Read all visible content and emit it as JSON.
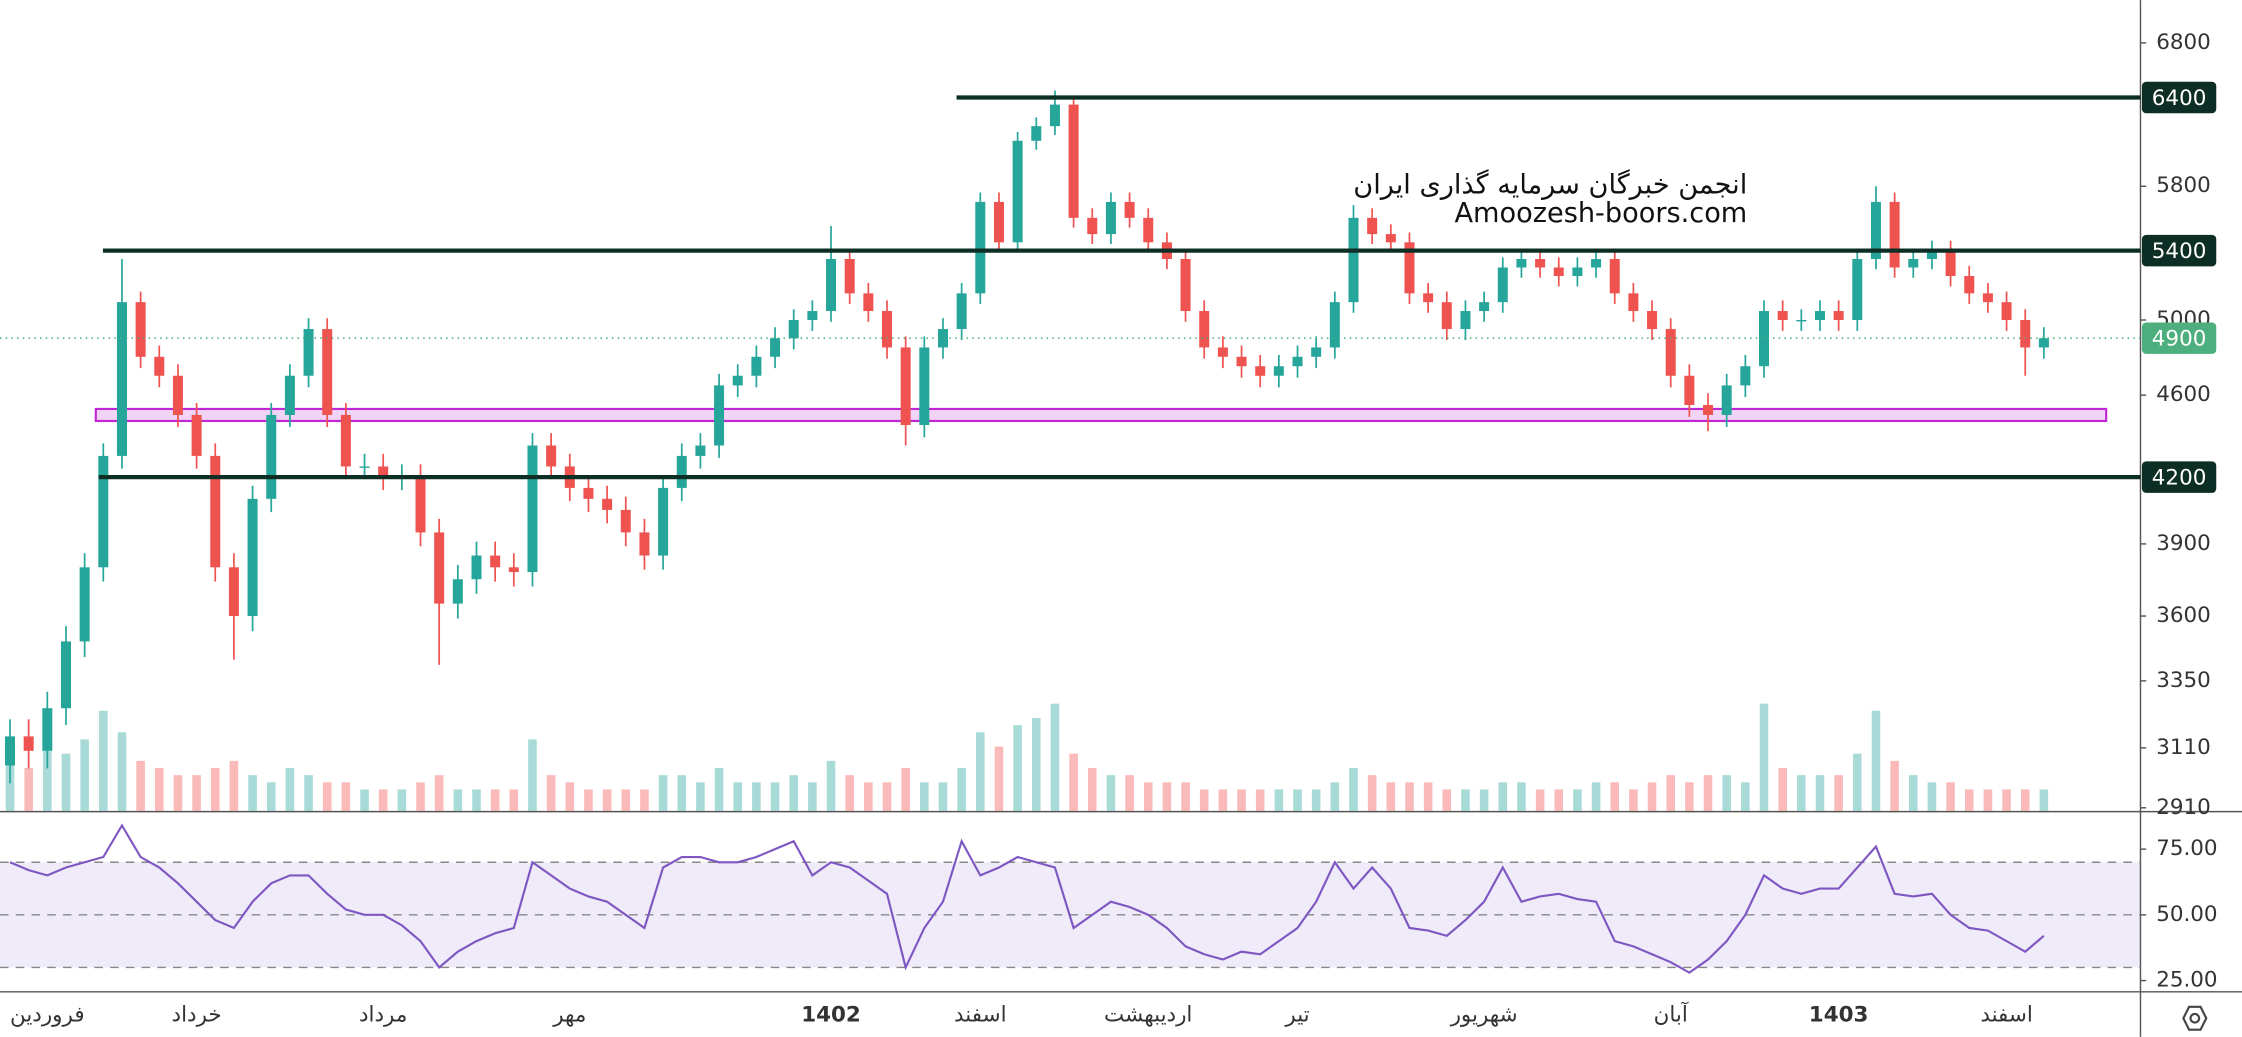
{
  "chart_data": [
    {
      "type": "candlestick",
      "watermark": [
        "انجمن خبرگان سرمایه گذاری ایران",
        "Amoozesh-boors.com"
      ],
      "categories": [
        null,
        null,
        "فروردین",
        null,
        null,
        null,
        null,
        null,
        null,
        null,
        "خرداد",
        null,
        null,
        null,
        null,
        null,
        null,
        null,
        null,
        null,
        "مرداد",
        null,
        null,
        null,
        null,
        null,
        null,
        null,
        null,
        null,
        "مهر",
        null,
        null,
        null,
        null,
        null,
        null,
        null,
        null,
        null,
        null,
        null,
        null,
        null,
        "1402",
        null,
        null,
        null,
        null,
        null,
        null,
        null,
        "اسفند",
        null,
        null,
        null,
        null,
        null,
        null,
        null,
        null,
        "اردیبهشت",
        null,
        null,
        null,
        null,
        null,
        null,
        null,
        "تیر",
        null,
        null,
        null,
        null,
        null,
        null,
        null,
        null,
        null,
        "شهریور",
        null,
        null,
        null,
        null,
        null,
        null,
        null,
        null,
        null,
        "آبان",
        null,
        null,
        null,
        null,
        null,
        null,
        null,
        null,
        "1403",
        null,
        null,
        null,
        null,
        null,
        null,
        null,
        null,
        "اسفند",
        null,
        null
      ],
      "open": [
        3050,
        3150,
        3100,
        3250,
        3500,
        3800,
        4300,
        5100,
        4800,
        4700,
        4500,
        4300,
        3800,
        3600,
        4100,
        4500,
        4700,
        4950,
        4500,
        4250,
        4250,
        4200,
        4200,
        3950,
        3650,
        3750,
        3850,
        3800,
        3780,
        4350,
        4250,
        4150,
        4100,
        4050,
        3950,
        3850,
        4150,
        4300,
        4350,
        4650,
        4700,
        4800,
        4900,
        5000,
        5050,
        5350,
        5150,
        5050,
        4850,
        4450,
        4850,
        4950,
        5150,
        5700,
        5450,
        6100,
        6200,
        6350,
        5600,
        5500,
        5700,
        5600,
        5450,
        5350,
        5050,
        4850,
        4800,
        4750,
        4700,
        4750,
        4800,
        4850,
        5100,
        5600,
        5500,
        5450,
        5150,
        5100,
        4950,
        5050,
        5100,
        5300,
        5350,
        5300,
        5250,
        5300,
        5350,
        5150,
        5050,
        4950,
        4700,
        4550,
        4500,
        4650,
        4750,
        5050,
        5000,
        5000,
        5050,
        5000,
        5350,
        5700,
        5300,
        5350,
        5400,
        5250,
        5150,
        5100,
        5000,
        4850
      ],
      "high": [
        3210,
        3210,
        3310,
        3560,
        3860,
        4360,
        5350,
        5160,
        4860,
        4760,
        4560,
        4360,
        3860,
        4160,
        4560,
        4760,
        5010,
        5010,
        4560,
        4310,
        4310,
        4260,
        4260,
        4010,
        3810,
        3910,
        3910,
        3860,
        4410,
        4410,
        4310,
        4210,
        4160,
        4110,
        4010,
        4210,
        4360,
        4410,
        4710,
        4760,
        4860,
        4960,
        5060,
        5110,
        5550,
        5410,
        5210,
        5110,
        4910,
        4910,
        5010,
        5210,
        5760,
        5760,
        6160,
        6260,
        6450,
        6410,
        5660,
        5760,
        5760,
        5660,
        5510,
        5410,
        5110,
        4910,
        4860,
        4810,
        4810,
        4860,
        4910,
        5160,
        5680,
        5660,
        5560,
        5510,
        5210,
        5160,
        5110,
        5160,
        5360,
        5410,
        5410,
        5360,
        5360,
        5410,
        5410,
        5210,
        5110,
        5010,
        4760,
        4610,
        4710,
        4810,
        5110,
        5110,
        5060,
        5110,
        5110,
        5410,
        5800,
        5760,
        5410,
        5460,
        5460,
        5310,
        5210,
        5160,
        5060,
        4960
      ],
      "low": [
        2990,
        3040,
        3040,
        3190,
        3440,
        3740,
        4240,
        4740,
        4640,
        4440,
        4240,
        3740,
        3430,
        3540,
        4040,
        4440,
        4640,
        4440,
        4190,
        4190,
        4140,
        4140,
        3890,
        3410,
        3590,
        3690,
        3740,
        3720,
        3720,
        4190,
        4090,
        4040,
        3990,
        3890,
        3790,
        3790,
        4090,
        4240,
        4290,
        4590,
        4640,
        4740,
        4840,
        4940,
        4990,
        5090,
        4990,
        4790,
        4350,
        4390,
        4790,
        4890,
        5090,
        5390,
        5390,
        6040,
        6140,
        5540,
        5440,
        5440,
        5540,
        5390,
        5290,
        4990,
        4790,
        4740,
        4690,
        4640,
        4640,
        4690,
        4740,
        4790,
        5040,
        5440,
        5390,
        5090,
        5040,
        4890,
        4890,
        4990,
        5040,
        5240,
        5240,
        5190,
        5190,
        5240,
        5090,
        4990,
        4890,
        4640,
        4490,
        4420,
        4440,
        4590,
        4690,
        4940,
        4940,
        4940,
        4940,
        4940,
        5290,
        5240,
        5240,
        5290,
        5190,
        5090,
        5040,
        4940,
        4700,
        4790
      ],
      "close": [
        3150,
        3100,
        3250,
        3500,
        3800,
        4300,
        5100,
        4800,
        4700,
        4500,
        4300,
        3800,
        3600,
        4100,
        4500,
        4700,
        4950,
        4500,
        4250,
        4250,
        4200,
        4200,
        3950,
        3650,
        3750,
        3850,
        3800,
        3780,
        4350,
        4250,
        4150,
        4100,
        4050,
        3950,
        3850,
        4150,
        4300,
        4350,
        4650,
        4700,
        4800,
        4900,
        5000,
        5050,
        5350,
        5150,
        5050,
        4850,
        4450,
        4850,
        4950,
        5150,
        5700,
        5450,
        6100,
        6200,
        6350,
        5600,
        5500,
        5700,
        5600,
        5450,
        5350,
        5050,
        4850,
        4800,
        4750,
        4700,
        4750,
        4800,
        4850,
        5100,
        5600,
        5500,
        5450,
        5150,
        5100,
        4950,
        5050,
        5100,
        5300,
        5350,
        5300,
        5250,
        5300,
        5350,
        5150,
        5050,
        4950,
        4700,
        4550,
        4500,
        4650,
        4750,
        5050,
        5000,
        5000,
        5050,
        5000,
        5350,
        5700,
        5300,
        5350,
        5400,
        5250,
        5150,
        5100,
        5000,
        4850,
        4900
      ],
      "volume": [
        45,
        30,
        55,
        40,
        50,
        70,
        55,
        35,
        30,
        25,
        25,
        30,
        35,
        25,
        20,
        30,
        25,
        20,
        20,
        15,
        15,
        15,
        20,
        25,
        15,
        15,
        15,
        15,
        50,
        25,
        20,
        15,
        15,
        15,
        15,
        25,
        25,
        20,
        30,
        20,
        20,
        20,
        25,
        20,
        35,
        25,
        20,
        20,
        30,
        20,
        20,
        30,
        55,
        45,
        60,
        65,
        75,
        40,
        30,
        25,
        25,
        20,
        20,
        20,
        15,
        15,
        15,
        15,
        15,
        15,
        15,
        20,
        30,
        25,
        20,
        20,
        20,
        15,
        15,
        15,
        20,
        20,
        15,
        15,
        15,
        20,
        20,
        15,
        20,
        25,
        20,
        25,
        25,
        20,
        75,
        30,
        25,
        25,
        25,
        40,
        70,
        35,
        25,
        20,
        20,
        15,
        15,
        15,
        15,
        15
      ],
      "up_color": "#26a69a",
      "down_color": "#ef5350",
      "log_scale": true,
      "ylim": [
        2900,
        7130
      ],
      "yticks": [
        6800,
        5800,
        5000,
        4600,
        3900,
        3600,
        3350,
        3110,
        2910
      ],
      "levels": [
        6400,
        5400,
        4200
      ],
      "level_color": "#0d2e25",
      "last_price": 4900,
      "last_color": "#4caf7d",
      "zone": [
        4470,
        4530
      ],
      "zone_color": "#c026d3"
    },
    {
      "type": "line",
      "color": "#7e57c2",
      "values": [
        70,
        67,
        65,
        68,
        70,
        72,
        84,
        72,
        68,
        62,
        55,
        48,
        45,
        55,
        62,
        65,
        65,
        58,
        52,
        50,
        50,
        46,
        40,
        30,
        36,
        40,
        43,
        45,
        70,
        65,
        60,
        57,
        55,
        50,
        45,
        68,
        72,
        72,
        70,
        70,
        72,
        75,
        78,
        65,
        70,
        68,
        63,
        58,
        30,
        45,
        55,
        78,
        65,
        68,
        72,
        70,
        68,
        45,
        50,
        55,
        53,
        50,
        45,
        38,
        35,
        33,
        36,
        35,
        40,
        45,
        55,
        70,
        60,
        68,
        60,
        45,
        44,
        42,
        48,
        55,
        68,
        55,
        57,
        58,
        56,
        55,
        40,
        38,
        35,
        32,
        28,
        33,
        40,
        50,
        65,
        60,
        58,
        60,
        60,
        68,
        76,
        58,
        57,
        58,
        50,
        45,
        44,
        40,
        36,
        42
      ],
      "ylim": [
        21,
        89
      ],
      "yticks": [
        {
          "value": 75,
          "label": "75.00"
        },
        {
          "value": 50,
          "label": "50.00"
        },
        {
          "value": 25,
          "label": "25.00"
        }
      ],
      "levels": [
        30,
        50,
        70
      ]
    }
  ]
}
